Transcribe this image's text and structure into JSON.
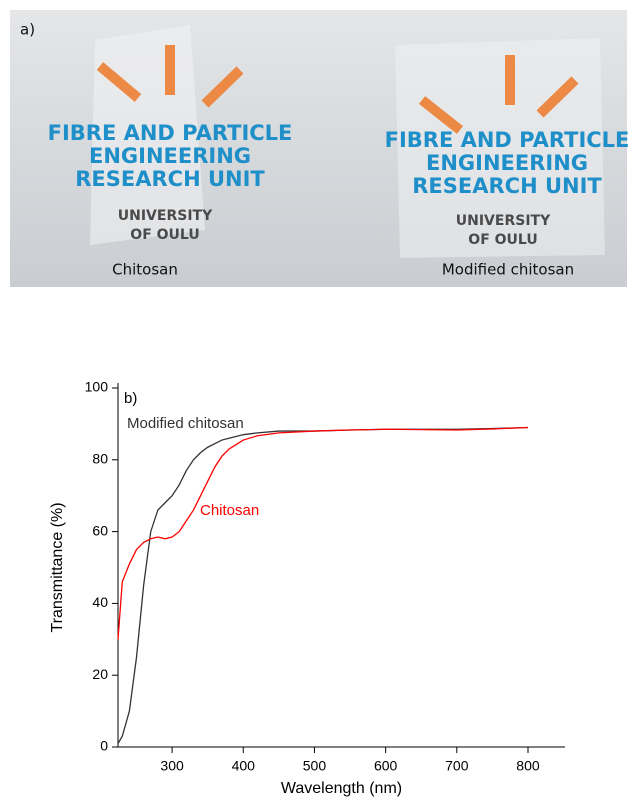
{
  "photo": {
    "label": "a)",
    "logos": [
      {
        "lines": [
          "FIBRE AND PARTICLE",
          "ENGINEERING",
          "RESEARCH UNIT"
        ],
        "university": [
          "UNIVERSITY",
          "OF OULU"
        ],
        "caption": "Chitosan"
      },
      {
        "lines": [
          "FIBRE AND PARTICLE",
          "ENGINEERING",
          "RESEARCH UNIT"
        ],
        "university": [
          "UNIVERSITY",
          "OF OULU"
        ],
        "caption": "Modified chitosan"
      }
    ]
  },
  "chart_data": {
    "type": "line",
    "panel_label": "b)",
    "x_label": "Wavelength (nm)",
    "y_label": "Transmittance (%)",
    "x": [
      224,
      230,
      240,
      250,
      260,
      270,
      280,
      290,
      300,
      310,
      320,
      330,
      340,
      350,
      360,
      370,
      380,
      400,
      420,
      450,
      500,
      550,
      600,
      650,
      700,
      750,
      800
    ],
    "series": [
      {
        "name": "Modified chitosan",
        "color": "#333333",
        "values": [
          1,
          3,
          10,
          25,
          45,
          60,
          66,
          68,
          70,
          73,
          77,
          80,
          82,
          83.5,
          84.5,
          85.5,
          86,
          87,
          87.5,
          88,
          88,
          88.3,
          88.5,
          88.5,
          88.5,
          88.7,
          89
        ]
      },
      {
        "name": "Chitosan",
        "color": "#ff0000",
        "values": [
          30,
          46,
          51,
          55,
          57,
          58,
          58.5,
          58,
          58.5,
          60,
          63,
          66,
          70,
          74,
          78,
          81,
          83,
          85.5,
          86.7,
          87.5,
          88,
          88.3,
          88.5,
          88.4,
          88.3,
          88.6,
          89
        ]
      }
    ],
    "xlim": [
      224,
      852
    ],
    "ylim": [
      0,
      100
    ],
    "xticks": [
      300,
      400,
      500,
      600,
      700,
      800
    ],
    "yticks": [
      0,
      20,
      40,
      60,
      80,
      100
    ]
  }
}
